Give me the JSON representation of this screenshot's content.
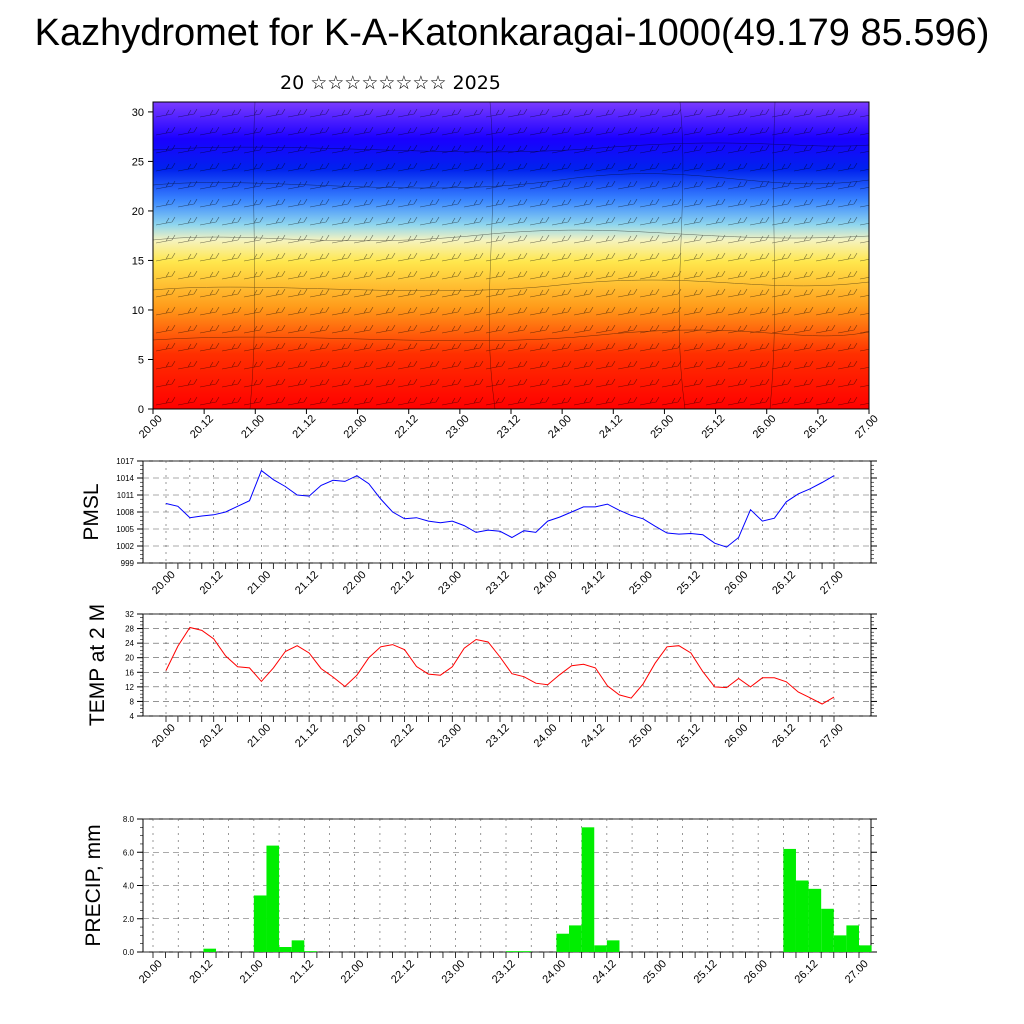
{
  "title": "Kazhydromet for K-A-Katonkaragai-1000(49.179 85.596)",
  "subtitle": "20 ☆☆☆☆☆☆☆☆ 2025",
  "x_ticks": [
    "20.00",
    "20.12",
    "21.00",
    "21.12",
    "22.00",
    "22.12",
    "23.00",
    "23.12",
    "24.00",
    "24.12",
    "25.00",
    "25.12",
    "26.00",
    "26.12",
    "27.00"
  ],
  "chart_data": [
    {
      "type": "heatmap",
      "panel": "cross-section",
      "x_ticks": [
        "20.00",
        "20.12",
        "21.00",
        "21.12",
        "22.00",
        "22.12",
        "23.00",
        "23.12",
        "24.00",
        "24.12",
        "25.00",
        "25.12",
        "26.00",
        "26.12",
        "27.00"
      ],
      "y_ticks": [
        "0",
        "5",
        "10",
        "15",
        "20",
        "25",
        "30"
      ],
      "ylim": [
        0,
        31
      ],
      "colormap": [
        "#ff0000",
        "#ff6a00",
        "#ffbf33",
        "#ffe74d",
        "#8fd6ee",
        "#3a86ff",
        "#0022ee",
        "#2200ff",
        "#7a3bff"
      ],
      "overlay": "wind barbs and contour lines"
    },
    {
      "type": "line",
      "ylabel": "PMSL",
      "ylim": [
        999,
        1017
      ],
      "y_ticks": [
        "999",
        "1002",
        "1005",
        "1008",
        "1011",
        "1014",
        "1017"
      ],
      "color": "#0000ff",
      "x_ticks": [
        "20.00",
        "20.12",
        "21.00",
        "21.12",
        "22.00",
        "22.12",
        "23.00",
        "23.12",
        "24.00",
        "24.12",
        "25.00",
        "25.12",
        "26.00",
        "26.12",
        "27.00"
      ],
      "values": [
        1009.5,
        1009,
        1007,
        1007.3,
        1007.5,
        1008,
        1009,
        1010,
        1015.3,
        1013.7,
        1012.5,
        1011,
        1010.8,
        1012.7,
        1013.6,
        1013.4,
        1014.4,
        1013,
        1010.3,
        1008,
        1006.8,
        1007,
        1006.4,
        1006.1,
        1006.4,
        1005.6,
        1004.4,
        1004.8,
        1004.6,
        1003.5,
        1004.7,
        1004.4,
        1006.4,
        1007.1,
        1008,
        1008.9,
        1008.9,
        1009.4,
        1008.3,
        1007.4,
        1006.8,
        1005.5,
        1004.3,
        1004.1,
        1004.2,
        1004,
        1002.5,
        1001.8,
        1003.5,
        1008.4,
        1006.4,
        1006.9,
        1009.8,
        1011.2,
        1012.1,
        1013.2,
        1014.4
      ]
    },
    {
      "type": "line",
      "ylabel": "TEMP at 2 M",
      "ylim": [
        4,
        32
      ],
      "y_ticks": [
        "4",
        "8",
        "12",
        "16",
        "20",
        "24",
        "28",
        "32"
      ],
      "color": "#ff0000",
      "x_ticks": [
        "20.00",
        "20.12",
        "21.00",
        "21.12",
        "22.00",
        "22.12",
        "23.00",
        "23.12",
        "24.00",
        "24.12",
        "25.00",
        "25.12",
        "26.00",
        "26.12",
        "27.00"
      ],
      "values": [
        16.5,
        23.2,
        28.3,
        27.5,
        25.2,
        20.5,
        17.5,
        17.2,
        13.5,
        17.2,
        21.7,
        23.3,
        21.3,
        17,
        14.7,
        12.1,
        15.2,
        20,
        23,
        23.6,
        22.2,
        17.6,
        15.5,
        15.2,
        17.5,
        22.6,
        25,
        24.3,
        20.2,
        15.6,
        14.8,
        13,
        12.6,
        15.3,
        17.8,
        18.2,
        17.2,
        12.3,
        9.8,
        8.9,
        12.8,
        18.5,
        23,
        23.3,
        21.3,
        16.2,
        12,
        11.8,
        14.3,
        12,
        14.5,
        14.5,
        13.4,
        10.6,
        9,
        7.3,
        9.2
      ]
    },
    {
      "type": "bar",
      "ylabel": "PRECIP, mm",
      "ylim": [
        0,
        8
      ],
      "y_ticks": [
        "0.0",
        "2.0",
        "4.0",
        "6.0",
        "8.0"
      ],
      "color": "#00ee00",
      "x_ticks": [
        "20.00",
        "20.12",
        "21.00",
        "21.12",
        "22.00",
        "22.12",
        "23.00",
        "23.12",
        "24.00",
        "24.12",
        "25.00",
        "25.12",
        "26.00",
        "26.12",
        "27.00"
      ],
      "values": [
        0,
        0,
        0,
        0,
        0.2,
        0,
        0,
        0,
        3.4,
        6.4,
        0.3,
        0.7,
        0.05,
        0,
        0,
        0,
        0,
        0,
        0,
        0,
        0,
        0,
        0,
        0,
        0,
        0,
        0,
        0,
        0.05,
        0.05,
        0,
        0,
        1.1,
        1.6,
        7.5,
        0.4,
        0.7,
        0,
        0,
        0,
        0,
        0,
        0,
        0,
        0,
        0,
        0,
        0,
        0,
        0,
        6.2,
        4.3,
        3.8,
        2.6,
        1.0,
        1.6,
        0.4
      ]
    }
  ]
}
